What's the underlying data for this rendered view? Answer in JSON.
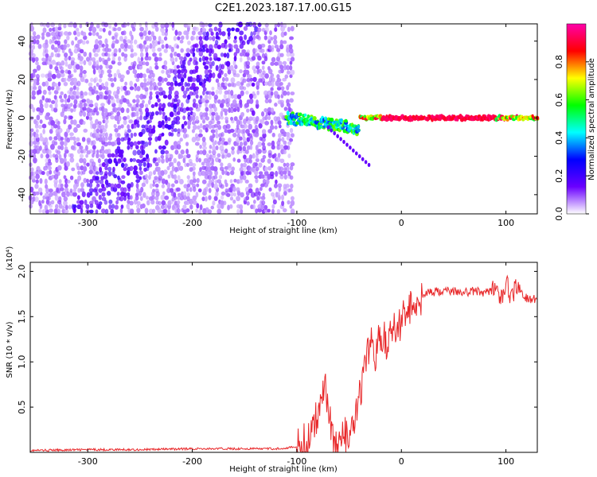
{
  "figure_title": "C2E1.2023.187.17.00.G15",
  "chart_data": [
    {
      "type": "heatmap",
      "title": "C2E1.2023.187.17.00.G15",
      "xlabel": "Height of straight line (km)",
      "ylabel": "Frequency (Hz)",
      "xlim": [
        -355,
        130
      ],
      "ylim": [
        -50,
        49
      ],
      "x_ticks": [
        -300,
        -200,
        -100,
        0,
        100
      ],
      "y_ticks": [
        -40,
        -20,
        0,
        20,
        40
      ],
      "colorbar": {
        "label": "Normalized spectral amplitude",
        "range": [
          0,
          1
        ],
        "ticks": [
          0.0,
          0.2,
          0.4,
          0.6,
          0.8
        ],
        "colormap": [
          "#ffffff",
          "#6a00ff",
          "#0000ff",
          "#00ffff",
          "#00ff00",
          "#ffff00",
          "#ff0000",
          "#ff00aa"
        ]
      },
      "signal_regions": [
        {
          "name": "diagonal stripe",
          "x_range": [
            -290,
            -160
          ],
          "frequency_range": [
            -45,
            48
          ],
          "amplitude": 0.12
        },
        {
          "name": "narrowband line",
          "x_range": [
            -110,
            130
          ],
          "frequency": 0,
          "amplitude": 0.9
        },
        {
          "name": "descending tail",
          "x_range": [
            -70,
            -30
          ],
          "frequency_range": [
            -25,
            -5
          ],
          "amplitude": 0.15
        }
      ],
      "noise_extent_km": [
        -355,
        -105
      ]
    },
    {
      "type": "line",
      "xlabel": "Height of straight line (km)",
      "ylabel": "SNR (10 * v/v)",
      "yscale_label": "(x10⁴)",
      "xlim": [
        -355,
        130
      ],
      "ylim": [
        0,
        2.1
      ],
      "x_ticks": [
        -300,
        -200,
        -100,
        0,
        100
      ],
      "y_ticks": [
        0.5,
        1.0,
        1.5,
        2.0
      ],
      "color": "#e8282a",
      "series": [
        {
          "x": [
            -355,
            -300,
            -250,
            -200,
            -150,
            -120,
            -100,
            -90,
            -80,
            -75,
            -72,
            -68,
            -65,
            -60,
            -55,
            -50,
            -45,
            -40,
            -35,
            -30,
            -25,
            -20,
            -15,
            -10,
            -5,
            0,
            5,
            10,
            15,
            20,
            30,
            40,
            50,
            60,
            70,
            80,
            90,
            95,
            100,
            105,
            110,
            120,
            130
          ],
          "y": [
            0.02,
            0.03,
            0.03,
            0.04,
            0.04,
            0.04,
            0.06,
            0.12,
            0.4,
            0.8,
            0.7,
            0.35,
            0.12,
            0.1,
            0.18,
            0.15,
            0.3,
            0.6,
            0.9,
            1.2,
            1.1,
            1.3,
            1.2,
            1.4,
            1.3,
            1.5,
            1.55,
            1.6,
            1.7,
            1.74,
            1.77,
            1.78,
            1.78,
            1.77,
            1.78,
            1.77,
            1.82,
            1.65,
            1.88,
            1.72,
            1.82,
            1.7,
            1.7
          ]
        }
      ]
    }
  ]
}
